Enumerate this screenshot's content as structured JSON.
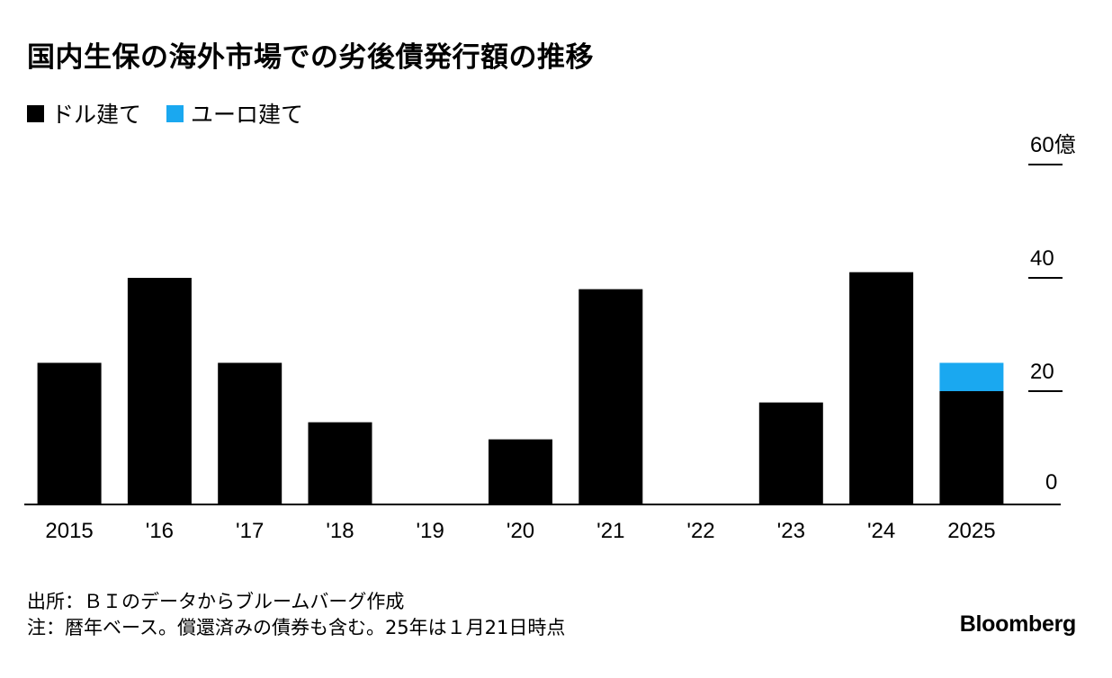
{
  "title": "国内生保の海外市場での劣後債発行額の推移",
  "colors": {
    "usd": "#000000",
    "eur": "#1aa8f0",
    "axis": "#000000"
  },
  "chart_data": {
    "type": "bar",
    "stacked": true,
    "categories": [
      "2015",
      "'16",
      "'17",
      "'18",
      "'19",
      "'20",
      "'21",
      "'22",
      "'23",
      "'24",
      "2025"
    ],
    "series": [
      {
        "name": "ドル建て",
        "values": [
          25,
          40,
          25,
          14.5,
          0,
          11.5,
          38,
          0,
          18,
          41,
          20
        ]
      },
      {
        "name": "ユーロ建て",
        "values": [
          0,
          0,
          0,
          0,
          0,
          0,
          0,
          0,
          0,
          0,
          5
        ]
      }
    ],
    "yticks": [
      {
        "value": 0,
        "label": "0"
      },
      {
        "value": 20,
        "label": "20"
      },
      {
        "value": 40,
        "label": "40"
      },
      {
        "value": 60,
        "label": "60億"
      }
    ],
    "ylim": [
      0,
      60
    ],
    "yaxis_position": "right",
    "legend_position": "top-left",
    "grid": false
  },
  "footer": {
    "source": "出所：ＢＩのデータからブルームバーグ作成",
    "note": "注：暦年ベース。償還済みの債券も含む。25年は１月21日時点"
  },
  "logo": "Bloomberg"
}
